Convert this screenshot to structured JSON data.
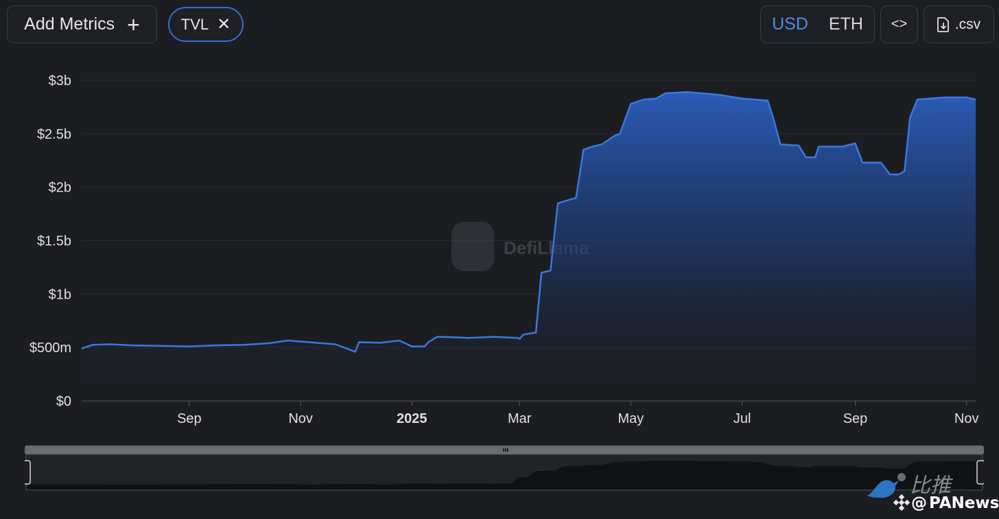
{
  "toolbar": {
    "add_metrics_label": "Add Metrics",
    "add_icon": "plus-icon",
    "metric_chip_label": "TVL",
    "remove_icon": "close-icon",
    "currency_options": [
      "USD",
      "ETH"
    ],
    "currency_selected": "USD",
    "embed_icon": "code-icon",
    "csv_label": ".csv",
    "csv_icon": "file-download-icon"
  },
  "colors": {
    "accent": "#2f6fd9",
    "line": "#3a78e0",
    "background": "#1c1d21"
  },
  "watermark": "DefiLlama",
  "corner_watermark": {
    "text1": "比推",
    "text2": "PANews",
    "at": "@"
  },
  "chart_data": {
    "type": "area",
    "title": "",
    "xlabel": "",
    "ylabel": "",
    "series": [
      {
        "name": "TVL"
      }
    ],
    "x_ticks": [
      "Sep",
      "Nov",
      "2025",
      "Mar",
      "May",
      "Jul",
      "Sep",
      "Nov"
    ],
    "x_tick_dates": [
      "2024-09-01",
      "2024-11-01",
      "2025-01-01",
      "2025-03-01",
      "2025-05-01",
      "2025-07-01",
      "2025-09-01",
      "2025-11-01"
    ],
    "y_ticks": [
      0,
      500000000,
      1000000000,
      1500000000,
      2000000000,
      2500000000,
      3000000000
    ],
    "y_tick_labels": [
      "$0",
      "$500m",
      "$1b",
      "$1.5b",
      "$2b",
      "$2.5b",
      "$3b"
    ],
    "ylim": [
      0,
      3000000000
    ],
    "xlim": [
      "2024-07-04",
      "2025-11-06"
    ],
    "grid": true,
    "points": [
      [
        "2024-07-04",
        490000000
      ],
      [
        "2024-07-10",
        525000000
      ],
      [
        "2024-07-20",
        530000000
      ],
      [
        "2024-08-01",
        520000000
      ],
      [
        "2024-08-15",
        515000000
      ],
      [
        "2024-09-01",
        510000000
      ],
      [
        "2024-09-15",
        520000000
      ],
      [
        "2024-10-01",
        525000000
      ],
      [
        "2024-10-15",
        540000000
      ],
      [
        "2024-10-25",
        565000000
      ],
      [
        "2024-11-05",
        550000000
      ],
      [
        "2024-11-20",
        530000000
      ],
      [
        "2024-12-01",
        460000000
      ],
      [
        "2024-12-03",
        550000000
      ],
      [
        "2024-12-15",
        545000000
      ],
      [
        "2024-12-25",
        565000000
      ],
      [
        "2025-01-01",
        510000000
      ],
      [
        "2025-01-08",
        510000000
      ],
      [
        "2025-01-10",
        550000000
      ],
      [
        "2025-01-15",
        600000000
      ],
      [
        "2025-01-25",
        595000000
      ],
      [
        "2025-02-01",
        590000000
      ],
      [
        "2025-02-15",
        600000000
      ],
      [
        "2025-02-28",
        590000000
      ],
      [
        "2025-03-01",
        580000000
      ],
      [
        "2025-03-03",
        620000000
      ],
      [
        "2025-03-10",
        640000000
      ],
      [
        "2025-03-13",
        1200000000
      ],
      [
        "2025-03-18",
        1220000000
      ],
      [
        "2025-03-22",
        1850000000
      ],
      [
        "2025-04-01",
        1900000000
      ],
      [
        "2025-04-05",
        2350000000
      ],
      [
        "2025-04-10",
        2380000000
      ],
      [
        "2025-04-15",
        2400000000
      ],
      [
        "2025-04-22",
        2480000000
      ],
      [
        "2025-04-25",
        2500000000
      ],
      [
        "2025-05-01",
        2780000000
      ],
      [
        "2025-05-08",
        2820000000
      ],
      [
        "2025-05-15",
        2830000000
      ],
      [
        "2025-05-20",
        2880000000
      ],
      [
        "2025-06-01",
        2890000000
      ],
      [
        "2025-06-15",
        2870000000
      ],
      [
        "2025-06-20",
        2860000000
      ],
      [
        "2025-07-01",
        2830000000
      ],
      [
        "2025-07-15",
        2810000000
      ],
      [
        "2025-07-18",
        2650000000
      ],
      [
        "2025-07-22",
        2400000000
      ],
      [
        "2025-08-01",
        2390000000
      ],
      [
        "2025-08-05",
        2280000000
      ],
      [
        "2025-08-10",
        2280000000
      ],
      [
        "2025-08-12",
        2380000000
      ],
      [
        "2025-08-25",
        2380000000
      ],
      [
        "2025-09-01",
        2410000000
      ],
      [
        "2025-09-05",
        2230000000
      ],
      [
        "2025-09-15",
        2230000000
      ],
      [
        "2025-09-20",
        2120000000
      ],
      [
        "2025-09-25",
        2120000000
      ],
      [
        "2025-09-28",
        2150000000
      ],
      [
        "2025-10-01",
        2650000000
      ],
      [
        "2025-10-05",
        2820000000
      ],
      [
        "2025-10-20",
        2840000000
      ],
      [
        "2025-11-01",
        2840000000
      ],
      [
        "2025-11-06",
        2820000000
      ]
    ]
  }
}
